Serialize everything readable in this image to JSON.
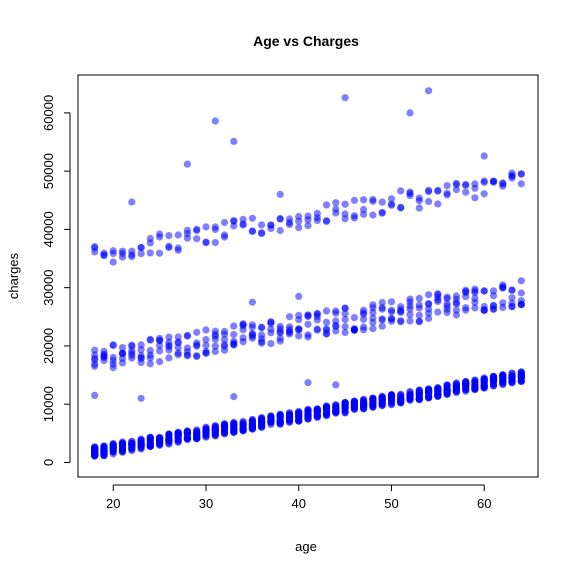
{
  "chart_data": {
    "type": "scatter",
    "title": "Age vs Charges",
    "xlabel": "age",
    "ylabel": "charges",
    "xlim": [
      16.2,
      65.8
    ],
    "ylim": [
      -2500,
      66500
    ],
    "xticks": [
      20,
      30,
      40,
      50,
      60
    ],
    "yticks": [
      0,
      10000,
      20000,
      30000,
      40000,
      50000,
      60000
    ],
    "grid": false,
    "legend": "none",
    "point_color": "#0000ff",
    "point_opacity": 0.5,
    "x_range_observed": [
      18,
      64
    ],
    "bands": [
      {
        "charges_at_age_18": 1500,
        "charges_at_age_64": 14500,
        "spread": 1800,
        "points_per_age": 20
      },
      {
        "charges_at_age_18": 17000,
        "charges_at_age_64": 28500,
        "spread": 4500,
        "points_per_age": 6
      },
      {
        "charges_at_age_18": 35000,
        "charges_at_age_64": 48000,
        "spread": 3500,
        "points_per_age": 3
      }
    ],
    "outliers": [
      {
        "x": 45,
        "y": 62600
      },
      {
        "x": 54,
        "y": 63800
      },
      {
        "x": 52,
        "y": 60000
      },
      {
        "x": 31,
        "y": 58600
      },
      {
        "x": 33,
        "y": 55100
      },
      {
        "x": 60,
        "y": 52600
      },
      {
        "x": 28,
        "y": 51200
      },
      {
        "x": 63,
        "y": 48800
      },
      {
        "x": 18,
        "y": 11500
      },
      {
        "x": 23,
        "y": 11000
      },
      {
        "x": 33,
        "y": 11300
      },
      {
        "x": 44,
        "y": 13300
      },
      {
        "x": 41,
        "y": 13700
      },
      {
        "x": 22,
        "y": 44700
      },
      {
        "x": 38,
        "y": 46000
      },
      {
        "x": 35,
        "y": 27500
      },
      {
        "x": 40,
        "y": 28500
      }
    ]
  }
}
